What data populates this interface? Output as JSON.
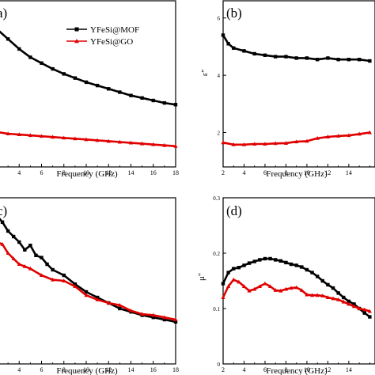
{
  "figure": {
    "panels": [
      "a",
      "b",
      "c",
      "d"
    ],
    "legend": [
      "YFeSi@MOF",
      "YFeSi@GO"
    ]
  },
  "chart_data": [
    {
      "panel": "(a)",
      "label_text": "a)",
      "type": "line",
      "xlabel": "Frequency (GHz)",
      "ylabel": "",
      "xlim": [
        2,
        18
      ],
      "ylim": [
        0,
        10
      ],
      "xticks": [
        4,
        6,
        8,
        10,
        12,
        14,
        16,
        18
      ],
      "yticks": [],
      "legend_placement": "top-right",
      "series": [
        {
          "name": "YFeSi@MOF",
          "color": "#000000",
          "marker": "square",
          "x": [
            2,
            3,
            4,
            5,
            6,
            7,
            8,
            9,
            10,
            11,
            12,
            13,
            14,
            15,
            16,
            17,
            18
          ],
          "y": [
            8.3,
            7.7,
            7.1,
            6.6,
            6.25,
            5.9,
            5.6,
            5.35,
            5.1,
            4.9,
            4.7,
            4.5,
            4.3,
            4.15,
            4.0,
            3.85,
            3.75
          ]
        },
        {
          "name": "YFeSi@GO",
          "color": "#e00000",
          "marker": "triangle",
          "x": [
            2,
            3,
            4,
            5,
            6,
            7,
            8,
            9,
            10,
            11,
            12,
            13,
            14,
            15,
            16,
            17,
            18
          ],
          "y": [
            2.1,
            2.0,
            1.95,
            1.9,
            1.85,
            1.8,
            1.75,
            1.7,
            1.65,
            1.6,
            1.55,
            1.5,
            1.45,
            1.4,
            1.35,
            1.3,
            1.25
          ]
        }
      ]
    },
    {
      "panel": "(b)",
      "label_text": "(b)",
      "type": "line",
      "xlabel": "Frequency (GHz)",
      "ylabel": "ε''",
      "xlim": [
        2,
        16.5
      ],
      "ylim": [
        0.8,
        6.6
      ],
      "xticks": [
        2,
        4,
        6,
        8,
        10,
        12,
        14
      ],
      "yticks": [
        2,
        4,
        6
      ],
      "series": [
        {
          "name": "YFeSi@MOF",
          "color": "#000000",
          "marker": "square",
          "x": [
            2,
            2.5,
            3,
            4,
            5,
            6,
            7,
            8,
            9,
            10,
            11,
            12,
            13,
            14,
            15,
            16
          ],
          "y": [
            5.4,
            5.1,
            4.95,
            4.85,
            4.75,
            4.7,
            4.65,
            4.65,
            4.6,
            4.6,
            4.55,
            4.6,
            4.55,
            4.55,
            4.55,
            4.5
          ]
        },
        {
          "name": "YFeSi@GO",
          "color": "#e00000",
          "marker": "triangle",
          "x": [
            2,
            3,
            4,
            5,
            6,
            7,
            8,
            9,
            10,
            11,
            12,
            13,
            14,
            15,
            16
          ],
          "y": [
            1.65,
            1.58,
            1.58,
            1.6,
            1.6,
            1.62,
            1.63,
            1.68,
            1.7,
            1.8,
            1.85,
            1.88,
            1.9,
            1.95,
            2.0
          ]
        }
      ]
    },
    {
      "panel": "(c)",
      "label_text": "c)",
      "type": "line",
      "xlabel": "Frequency (GHz)",
      "ylabel": "",
      "xlim": [
        2,
        18
      ],
      "ylim": [
        0,
        1.5
      ],
      "xticks": [
        4,
        6,
        8,
        10,
        12,
        14,
        16,
        18
      ],
      "yticks": [],
      "series": [
        {
          "name": "YFeSi@MOF",
          "color": "#000000",
          "marker": "square",
          "x": [
            2,
            2.5,
            3,
            3.5,
            4,
            4.5,
            5,
            5.5,
            6,
            6.5,
            7,
            8,
            9,
            10,
            11,
            12,
            13,
            14,
            15,
            16,
            17,
            18
          ],
          "y": [
            1.34,
            1.28,
            1.2,
            1.15,
            1.1,
            1.03,
            1.07,
            0.98,
            0.96,
            0.9,
            0.85,
            0.8,
            0.72,
            0.65,
            0.6,
            0.55,
            0.5,
            0.47,
            0.44,
            0.42,
            0.4,
            0.38
          ]
        },
        {
          "name": "YFeSi@GO",
          "color": "#e00000",
          "marker": "triangle",
          "x": [
            2,
            2.5,
            3,
            3.5,
            4,
            4.5,
            5,
            6,
            7,
            8,
            9,
            10,
            11,
            12,
            13,
            14,
            15,
            16,
            17,
            18
          ],
          "y": [
            1.1,
            1.08,
            1.0,
            0.95,
            0.9,
            0.88,
            0.86,
            0.8,
            0.76,
            0.75,
            0.7,
            0.62,
            0.58,
            0.55,
            0.53,
            0.48,
            0.45,
            0.44,
            0.42,
            0.4
          ]
        }
      ]
    },
    {
      "panel": "(d)",
      "label_text": "(d)",
      "type": "line",
      "xlabel": "Frequency (GHz)",
      "ylabel": "μ''",
      "xlim": [
        2,
        16.5
      ],
      "ylim": [
        0.0,
        0.3
      ],
      "xticks": [
        2,
        4,
        6,
        8,
        10,
        12,
        14
      ],
      "yticks": [
        0.0,
        0.1,
        0.2,
        0.3
      ],
      "series": [
        {
          "name": "YFeSi@MOF",
          "color": "#000000",
          "marker": "square",
          "x": [
            2,
            2.5,
            3,
            3.5,
            4,
            4.5,
            5,
            5.5,
            6,
            6.5,
            7,
            7.5,
            8,
            8.5,
            9,
            9.5,
            10,
            10.5,
            11,
            11.5,
            12,
            12.5,
            13,
            13.5,
            14,
            14.5,
            15,
            15.5,
            16
          ],
          "y": [
            0.145,
            0.165,
            0.172,
            0.174,
            0.178,
            0.182,
            0.185,
            0.188,
            0.19,
            0.19,
            0.188,
            0.186,
            0.183,
            0.18,
            0.178,
            0.175,
            0.17,
            0.165,
            0.158,
            0.15,
            0.143,
            0.137,
            0.128,
            0.12,
            0.113,
            0.108,
            0.1,
            0.092,
            0.085
          ]
        },
        {
          "name": "YFeSi@GO",
          "color": "#e00000",
          "marker": "triangle",
          "x": [
            2,
            2.5,
            3,
            3.5,
            4,
            4.5,
            5,
            5.5,
            6,
            6.5,
            7,
            7.5,
            8,
            8.5,
            9,
            9.5,
            10,
            10.5,
            11,
            11.5,
            12,
            12.5,
            13,
            13.5,
            14,
            14.5,
            15,
            15.5,
            16
          ],
          "y": [
            0.12,
            0.14,
            0.152,
            0.148,
            0.14,
            0.132,
            0.135,
            0.14,
            0.145,
            0.14,
            0.133,
            0.132,
            0.135,
            0.137,
            0.138,
            0.133,
            0.125,
            0.124,
            0.124,
            0.123,
            0.12,
            0.118,
            0.116,
            0.112,
            0.108,
            0.104,
            0.1,
            0.098,
            0.095
          ]
        }
      ]
    }
  ]
}
